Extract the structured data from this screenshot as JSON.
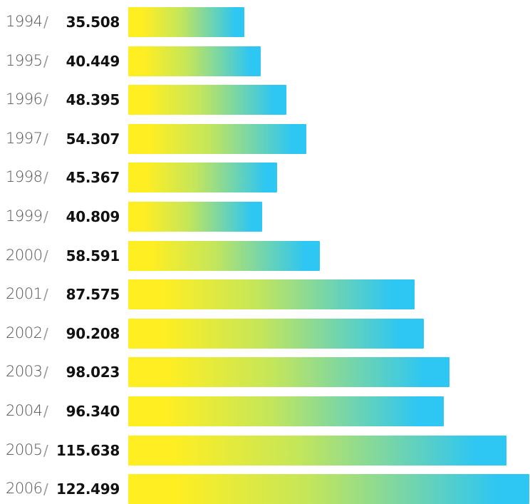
{
  "chart_data": {
    "type": "bar",
    "orientation": "horizontal",
    "title": "",
    "xlabel": "",
    "ylabel": "",
    "categories": [
      "1994",
      "1995",
      "1996",
      "1997",
      "1998",
      "1999",
      "2000",
      "2001",
      "2002",
      "2003",
      "2004",
      "2005",
      "2006"
    ],
    "separator": "/",
    "value_labels": [
      "35.508",
      "40.449",
      "48.395",
      "54.307",
      "45.367",
      "40.809",
      "58.591",
      "87.575",
      "90.208",
      "98.023",
      "96.340",
      "115.638",
      "122.499"
    ],
    "values": [
      35508,
      40449,
      48395,
      54307,
      45367,
      40809,
      58591,
      87575,
      90208,
      98023,
      96340,
      115638,
      122499
    ],
    "colors": {
      "gradient_start": "#ffee22",
      "gradient_mid": "#c4e65a",
      "gradient_end": "#2ec6f2"
    },
    "grid": false,
    "legend": "none"
  }
}
